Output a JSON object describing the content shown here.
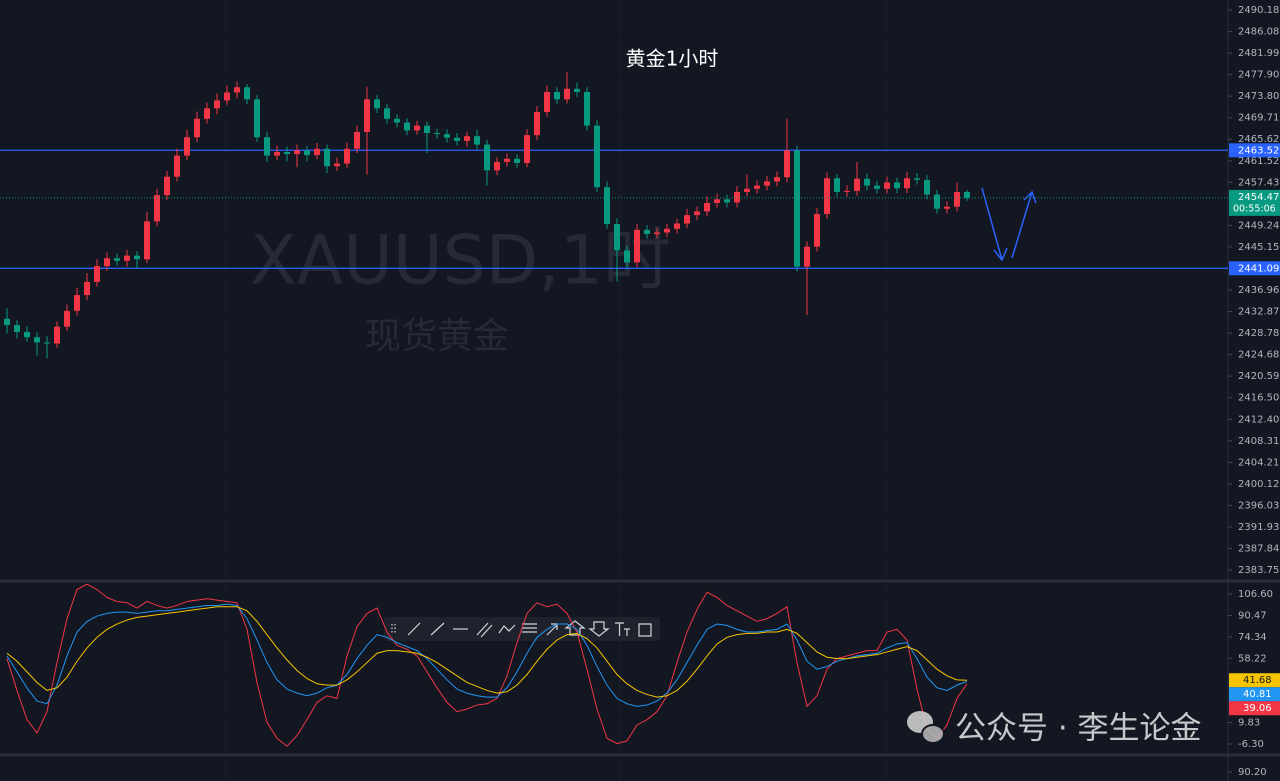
{
  "chart_data": [
    {
      "type": "candlestick",
      "title": "黄金1小时",
      "watermark": "XAUUSD,1时",
      "watermark_sub": "现货黄金",
      "up_color": "#f23645",
      "down_color": "#089981",
      "ohlc": [
        [
          2431.5,
          2433.5,
          2428.7,
          2430.3
        ],
        [
          2430.3,
          2431.2,
          2427.8,
          2429
        ],
        [
          2429,
          2430.1,
          2427.1,
          2428
        ],
        [
          2428,
          2428.9,
          2424.5,
          2427
        ],
        [
          2427,
          2428.2,
          2424,
          2426.8
        ],
        [
          2426.8,
          2431,
          2426,
          2430
        ],
        [
          2430,
          2434.2,
          2429.2,
          2433
        ],
        [
          2433,
          2437.4,
          2432.1,
          2436
        ],
        [
          2436,
          2440.2,
          2435.1,
          2438.5
        ],
        [
          2438.5,
          2442.8,
          2437.6,
          2441.5
        ],
        [
          2441.5,
          2444.1,
          2440.6,
          2443
        ],
        [
          2443,
          2443.9,
          2441.6,
          2442.5
        ],
        [
          2442.5,
          2444.6,
          2441.4,
          2443.5
        ],
        [
          2443.5,
          2444.3,
          2441.1,
          2442.8
        ],
        [
          2442.8,
          2451.8,
          2442.1,
          2450
        ],
        [
          2450,
          2456.2,
          2449.1,
          2455
        ],
        [
          2455,
          2459.6,
          2454.1,
          2458.5
        ],
        [
          2458.5,
          2463.8,
          2457.6,
          2462.5
        ],
        [
          2462.5,
          2467.4,
          2461.6,
          2466
        ],
        [
          2466,
          2470.9,
          2465.1,
          2469.5
        ],
        [
          2469.5,
          2472.6,
          2468.6,
          2471.5
        ],
        [
          2471.5,
          2474.3,
          2470.4,
          2473
        ],
        [
          2473,
          2475.8,
          2472.1,
          2474.5
        ],
        [
          2474.5,
          2476.6,
          2473.4,
          2475.5
        ],
        [
          2475.5,
          2476.1,
          2472.3,
          2473.2
        ],
        [
          2473.2,
          2474,
          2465.1,
          2466
        ],
        [
          2466,
          2467.1,
          2461.3,
          2462.5
        ],
        [
          2462.5,
          2464.4,
          2461.6,
          2463.2
        ],
        [
          2463.2,
          2464.2,
          2461.4,
          2462.8
        ],
        [
          2462.8,
          2464.6,
          2460.3,
          2463.5
        ],
        [
          2463.5,
          2464.3,
          2461.4,
          2462.6
        ],
        [
          2462.6,
          2464.9,
          2461.8,
          2463.8
        ],
        [
          2463.8,
          2464.6,
          2459.2,
          2460.5
        ],
        [
          2460.5,
          2462.1,
          2459.6,
          2461
        ],
        [
          2461,
          2465,
          2460.2,
          2463.8
        ],
        [
          2463.8,
          2468.2,
          2463,
          2467
        ],
        [
          2467,
          2475.6,
          2458.9,
          2473.2
        ],
        [
          2473.2,
          2474,
          2470.6,
          2471.5
        ],
        [
          2471.5,
          2472.3,
          2468.6,
          2469.5
        ],
        [
          2469.5,
          2470.4,
          2467.9,
          2468.8
        ],
        [
          2468.8,
          2469.6,
          2466.4,
          2467.3
        ],
        [
          2467.3,
          2469.1,
          2466.5,
          2468.2
        ],
        [
          2468.2,
          2469,
          2463,
          2466.8
        ],
        [
          2466.8,
          2467.6,
          2465.7,
          2466.6
        ],
        [
          2466.6,
          2467.5,
          2465,
          2465.9
        ],
        [
          2465.9,
          2466.8,
          2464.4,
          2465.3
        ],
        [
          2465.3,
          2467.1,
          2464.2,
          2466.2
        ],
        [
          2466.2,
          2467.4,
          2463.7,
          2464.6
        ],
        [
          2464.6,
          2465.5,
          2456.8,
          2459.7
        ],
        [
          2459.7,
          2462.2,
          2458.8,
          2461.3
        ],
        [
          2461.3,
          2462.9,
          2460.4,
          2461.9
        ],
        [
          2461.9,
          2462.8,
          2460.2,
          2461.1
        ],
        [
          2461.1,
          2467.5,
          2460.3,
          2466.4
        ],
        [
          2466.4,
          2471.9,
          2465.5,
          2470.8
        ],
        [
          2470.8,
          2475.8,
          2469.9,
          2474.6
        ],
        [
          2474.6,
          2475.5,
          2472.3,
          2473.2
        ],
        [
          2473.2,
          2478.4,
          2472.4,
          2475.2
        ],
        [
          2475.2,
          2476.4,
          2473.7,
          2474.6
        ],
        [
          2474.6,
          2475.5,
          2467.3,
          2468.2
        ],
        [
          2468.2,
          2469.2,
          2455.6,
          2456.5
        ],
        [
          2456.5,
          2457.6,
          2448.6,
          2449.5
        ],
        [
          2449.5,
          2450.6,
          2438.6,
          2444.5
        ],
        [
          2444.5,
          2445.4,
          2440.9,
          2442.2
        ],
        [
          2442.2,
          2449.5,
          2441.3,
          2448.4
        ],
        [
          2448.4,
          2449.3,
          2446.7,
          2447.6
        ],
        [
          2447.6,
          2448.8,
          2446.8,
          2447.9
        ],
        [
          2447.9,
          2449.5,
          2447,
          2448.6
        ],
        [
          2448.6,
          2450.5,
          2447.7,
          2449.6
        ],
        [
          2449.6,
          2452.4,
          2448.7,
          2451.2
        ],
        [
          2451.2,
          2452.8,
          2450.3,
          2451.9
        ],
        [
          2451.9,
          2454.7,
          2451,
          2453.5
        ],
        [
          2453.5,
          2455.3,
          2452.6,
          2454.2
        ],
        [
          2454.2,
          2455.1,
          2452.7,
          2453.6
        ],
        [
          2453.6,
          2456.7,
          2452.7,
          2455.6
        ],
        [
          2455.6,
          2458.9,
          2454.7,
          2456.2
        ],
        [
          2456.2,
          2457.8,
          2455.3,
          2456.8
        ],
        [
          2456.8,
          2458.6,
          2455.9,
          2457.6
        ],
        [
          2457.6,
          2459.5,
          2456.7,
          2458.4
        ],
        [
          2458.4,
          2469.5,
          2457.5,
          2463.5
        ],
        [
          2463.5,
          2464.4,
          2440.5,
          2441.4
        ],
        [
          2441.4,
          2446.2,
          2432.2,
          2445.2
        ],
        [
          2445.2,
          2452.5,
          2444.3,
          2451.4
        ],
        [
          2451.4,
          2459.3,
          2450.5,
          2458.2
        ],
        [
          2458.2,
          2459,
          2454.7,
          2455.6
        ],
        [
          2455.6,
          2456.9,
          2454.7,
          2455.8
        ],
        [
          2455.8,
          2461.3,
          2454.9,
          2458.1
        ],
        [
          2458.1,
          2459.1,
          2455.9,
          2456.8
        ],
        [
          2456.8,
          2457.7,
          2455.3,
          2456.2
        ],
        [
          2456.2,
          2458.5,
          2455.3,
          2457.4
        ],
        [
          2457.4,
          2458.3,
          2455.4,
          2456.3
        ],
        [
          2456.3,
          2459.4,
          2455.4,
          2458.2
        ],
        [
          2458.2,
          2459.2,
          2457,
          2457.9
        ],
        [
          2457.9,
          2458.8,
          2454.2,
          2455.1
        ],
        [
          2455.1,
          2456,
          2451.5,
          2452.4
        ],
        [
          2452.4,
          2453.8,
          2451.5,
          2452.8
        ],
        [
          2452.8,
          2457.4,
          2451.9,
          2455.6
        ],
        [
          2455.6,
          2456,
          2453.9,
          2454.47
        ]
      ],
      "ylim": [
        2381.85,
        2492.08
      ],
      "yticks": [
        2490.18,
        2486.08,
        2481.99,
        {
          "value": 2477.9,
          "label": "2477.90"
        },
        {
          "value": 2473.8,
          "label": "2473.80"
        },
        2469.71,
        2465.62,
        2461.52,
        2457.43,
        2449.24,
        2445.15,
        2436.96,
        2432.87,
        2428.78,
        2424.68,
        2420.59,
        {
          "value": 2416.5,
          "label": "2416.50"
        },
        {
          "value": 2412.4,
          "label": "2412.40"
        },
        2408.31,
        2404.21,
        2400.12,
        2396.03,
        2391.93,
        2387.84,
        2383.75
      ],
      "hlines": [
        2463.52,
        2441.09
      ],
      "hline_color": "#2962ff",
      "last_price": 2454.47,
      "countdown": "00:55:06"
    },
    {
      "type": "line",
      "series": [
        {
          "color": "#f23645",
          "values": [
            58,
            34,
            12,
            2,
            18,
            55,
            88,
            110,
            114,
            110,
            104,
            101,
            100,
            96,
            101,
            98,
            96,
            98,
            101,
            102,
            103,
            102,
            101,
            100,
            80,
            40,
            10,
            -2,
            -8,
            0,
            12,
            25,
            30,
            28,
            60,
            82,
            92,
            96,
            78,
            68,
            65,
            60,
            48,
            36,
            25,
            18,
            20,
            23,
            24,
            28,
            45,
            70,
            92,
            100,
            97,
            99,
            92,
            78,
            50,
            20,
            -2,
            -6,
            -4,
            8,
            12,
            18,
            30,
            55,
            78,
            95,
            108,
            104,
            98,
            94,
            90,
            86,
            88,
            92,
            97,
            55,
            22,
            30,
            50,
            58,
            60,
            62,
            64,
            64,
            78,
            80,
            72,
            35,
            5,
            -2,
            8,
            28,
            39.06
          ]
        },
        {
          "color": "#2196f3",
          "values": [
            60,
            48,
            36,
            26,
            24,
            38,
            60,
            78,
            86,
            90,
            92,
            93,
            93,
            92,
            93,
            94,
            94,
            95,
            96,
            97,
            98,
            98,
            99,
            98,
            88,
            72,
            55,
            42,
            35,
            32,
            30,
            32,
            36,
            38,
            46,
            58,
            68,
            76,
            74,
            70,
            67,
            64,
            58,
            50,
            42,
            35,
            32,
            30,
            29,
            29,
            36,
            48,
            62,
            74,
            80,
            84,
            84,
            80,
            68,
            52,
            38,
            28,
            24,
            22,
            23,
            26,
            32,
            42,
            55,
            68,
            80,
            84,
            83,
            80,
            78,
            78,
            79,
            80,
            84,
            72,
            56,
            50,
            52,
            56,
            58,
            60,
            61,
            62,
            66,
            69,
            70,
            58,
            44,
            36,
            34,
            38,
            40.81
          ]
        },
        {
          "color": "#f7c500",
          "values": [
            62,
            56,
            48,
            40,
            34,
            36,
            44,
            56,
            66,
            74,
            80,
            84,
            87,
            89,
            90,
            91,
            92,
            93,
            94,
            95,
            96,
            97,
            97,
            97,
            94,
            86,
            76,
            66,
            57,
            49,
            43,
            39,
            38,
            38,
            42,
            48,
            55,
            62,
            64,
            64,
            63,
            62,
            59,
            55,
            50,
            45,
            40,
            37,
            34,
            32,
            33,
            38,
            46,
            56,
            65,
            72,
            76,
            77,
            73,
            66,
            56,
            46,
            39,
            34,
            31,
            29,
            30,
            34,
            41,
            50,
            60,
            69,
            74,
            76,
            77,
            77,
            78,
            78,
            80,
            77,
            70,
            63,
            59,
            58,
            58,
            59,
            60,
            61,
            63,
            65,
            67,
            64,
            57,
            50,
            45,
            42,
            41.68
          ]
        }
      ],
      "ylim": [
        -13.1,
        114.9
      ],
      "yticks": [
        {
          "value": 106.6,
          "label": "106.60"
        },
        90.47,
        74.34,
        58.22,
        9.83,
        {
          "value": -6.3,
          "label": "-6.30"
        }
      ]
    },
    {
      "type": "line",
      "ylim": [
        81.2,
        105
      ],
      "yticks": [
        {
          "value": 90.2,
          "label": "90.20"
        }
      ]
    }
  ],
  "watermark": {
    "text": "公众号 · 李生论金"
  }
}
